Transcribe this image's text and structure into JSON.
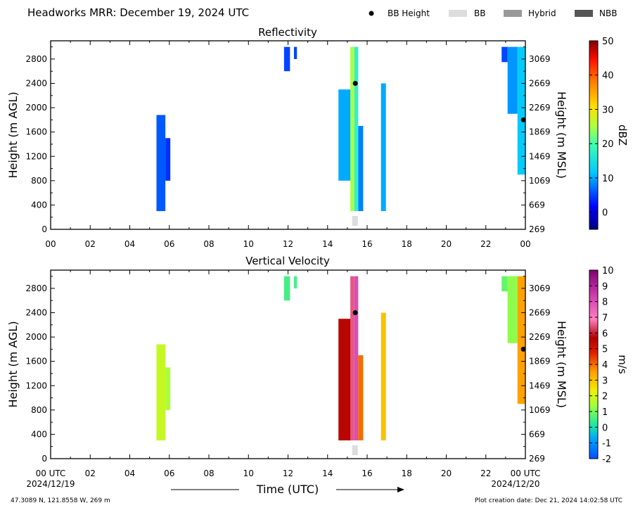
{
  "header": {
    "title": "Headworks MRR:  December 19, 2024 UTC",
    "legend": [
      {
        "label": "BB Height",
        "kind": "dot",
        "color": "#000000"
      },
      {
        "label": "BB",
        "kind": "box",
        "color": "#dddddd"
      },
      {
        "label": "Hybrid",
        "kind": "box",
        "color": "#999999"
      },
      {
        "label": "NBB",
        "kind": "box",
        "color": "#555555"
      }
    ]
  },
  "footer": {
    "location": "47.3089 N, 121.8558 W, 269 m",
    "creation": "Plot creation date: Dec 21, 2024 14:02:58 UTC",
    "xlabel": "Time (UTC)",
    "date_start": "2024/12/19",
    "date_end": "2024/12/20"
  },
  "chart_data": [
    {
      "type": "heatmap",
      "title": "Reflectivity",
      "ylabel": "Height (m AGL)",
      "ylabel_right": "Height (m MSL)",
      "colorbar_label": "dBZ",
      "xlim": [
        0,
        24
      ],
      "ylim": [
        0,
        3100
      ],
      "x_ticks": [
        "00",
        "02",
        "04",
        "06",
        "08",
        "10",
        "12",
        "14",
        "16",
        "18",
        "20",
        "22",
        "00"
      ],
      "y_ticks": [
        0,
        400,
        800,
        1200,
        1600,
        2000,
        2400,
        2800
      ],
      "y_ticks_right": [
        269,
        669,
        1069,
        1469,
        1869,
        2269,
        2669,
        3069
      ],
      "colorbar_range": [
        -5,
        50
      ],
      "colorbar_ticks": [
        0,
        10,
        20,
        30,
        40,
        50
      ],
      "bb_height_points": [
        {
          "x": 15.4,
          "y": 2400
        },
        {
          "x": 23.9,
          "y": 1800
        }
      ],
      "bb_marker": {
        "x": 15.35,
        "type": "BB"
      },
      "echo_columns": [
        {
          "t0": 5.35,
          "t1": 5.8,
          "h0": 300,
          "h1": 1880,
          "value": 6
        },
        {
          "t0": 5.8,
          "t1": 6.05,
          "h0": 800,
          "h1": 1500,
          "value": 4
        },
        {
          "t0": 11.8,
          "t1": 12.1,
          "h0": 2600,
          "h1": 3000,
          "value": 5
        },
        {
          "t0": 12.3,
          "t1": 12.45,
          "h0": 2800,
          "h1": 3000,
          "value": 5
        },
        {
          "t0": 14.55,
          "t1": 15.2,
          "h0": 800,
          "h1": 2300,
          "value": 10
        },
        {
          "t0": 15.15,
          "t1": 15.35,
          "h0": 300,
          "h1": 3000,
          "value": 25
        },
        {
          "t0": 15.35,
          "t1": 15.55,
          "h0": 300,
          "h1": 3000,
          "value": 18
        },
        {
          "t0": 15.55,
          "t1": 15.8,
          "h0": 300,
          "h1": 1700,
          "value": 8
        },
        {
          "t0": 16.7,
          "t1": 16.95,
          "h0": 300,
          "h1": 2400,
          "value": 10
        },
        {
          "t0": 22.8,
          "t1": 23.1,
          "h0": 2750,
          "h1": 3000,
          "value": 5
        },
        {
          "t0": 23.1,
          "t1": 23.6,
          "h0": 1900,
          "h1": 3000,
          "value": 9
        },
        {
          "t0": 23.6,
          "t1": 24.0,
          "h0": 900,
          "h1": 3000,
          "value": 12
        }
      ]
    },
    {
      "type": "heatmap",
      "title": "Vertical Velocity",
      "ylabel": "Height (m AGL)",
      "ylabel_right": "Height (m MSL)",
      "colorbar_label": "m/s",
      "xlim": [
        0,
        24
      ],
      "ylim": [
        0,
        3100
      ],
      "x_ticks": [
        "00 UTC",
        "02",
        "04",
        "06",
        "08",
        "10",
        "12",
        "14",
        "16",
        "18",
        "20",
        "22",
        "00 UTC"
      ],
      "y_ticks": [
        0,
        400,
        800,
        1200,
        1600,
        2000,
        2400,
        2800
      ],
      "y_ticks_right": [
        269,
        669,
        1069,
        1469,
        1869,
        2269,
        2669,
        3069
      ],
      "colorbar_range": [
        -2,
        10
      ],
      "colorbar_ticks": [
        -2,
        -1,
        0,
        1,
        2,
        3,
        4,
        5,
        6,
        7,
        8,
        9,
        10
      ],
      "bb_height_points": [
        {
          "x": 15.4,
          "y": 2400
        },
        {
          "x": 23.9,
          "y": 1800
        }
      ],
      "bb_marker": {
        "x": 15.35,
        "type": "BB"
      },
      "echo_columns": [
        {
          "t0": 5.35,
          "t1": 5.8,
          "h0": 300,
          "h1": 1880,
          "value": 1.8
        },
        {
          "t0": 5.8,
          "t1": 6.05,
          "h0": 800,
          "h1": 1500,
          "value": 1.5
        },
        {
          "t0": 11.8,
          "t1": 12.1,
          "h0": 2600,
          "h1": 3000,
          "value": 0.5
        },
        {
          "t0": 12.3,
          "t1": 12.45,
          "h0": 2800,
          "h1": 3000,
          "value": 0.5
        },
        {
          "t0": 14.55,
          "t1": 15.2,
          "h0": 300,
          "h1": 2300,
          "value": 5.5
        },
        {
          "t0": 15.15,
          "t1": 15.35,
          "h0": 300,
          "h1": 3000,
          "value": 6.5
        },
        {
          "t0": 15.35,
          "t1": 15.55,
          "h0": 300,
          "h1": 3000,
          "value": 8
        },
        {
          "t0": 15.55,
          "t1": 15.8,
          "h0": 300,
          "h1": 1700,
          "value": 4
        },
        {
          "t0": 16.7,
          "t1": 16.95,
          "h0": 300,
          "h1": 2400,
          "value": 3
        },
        {
          "t0": 22.8,
          "t1": 23.1,
          "h0": 2750,
          "h1": 3000,
          "value": 0.8
        },
        {
          "t0": 23.1,
          "t1": 23.6,
          "h0": 1900,
          "h1": 3000,
          "value": 1.2
        },
        {
          "t0": 23.6,
          "t1": 24.0,
          "h0": 900,
          "h1": 3000,
          "value": 3.5
        }
      ]
    }
  ]
}
